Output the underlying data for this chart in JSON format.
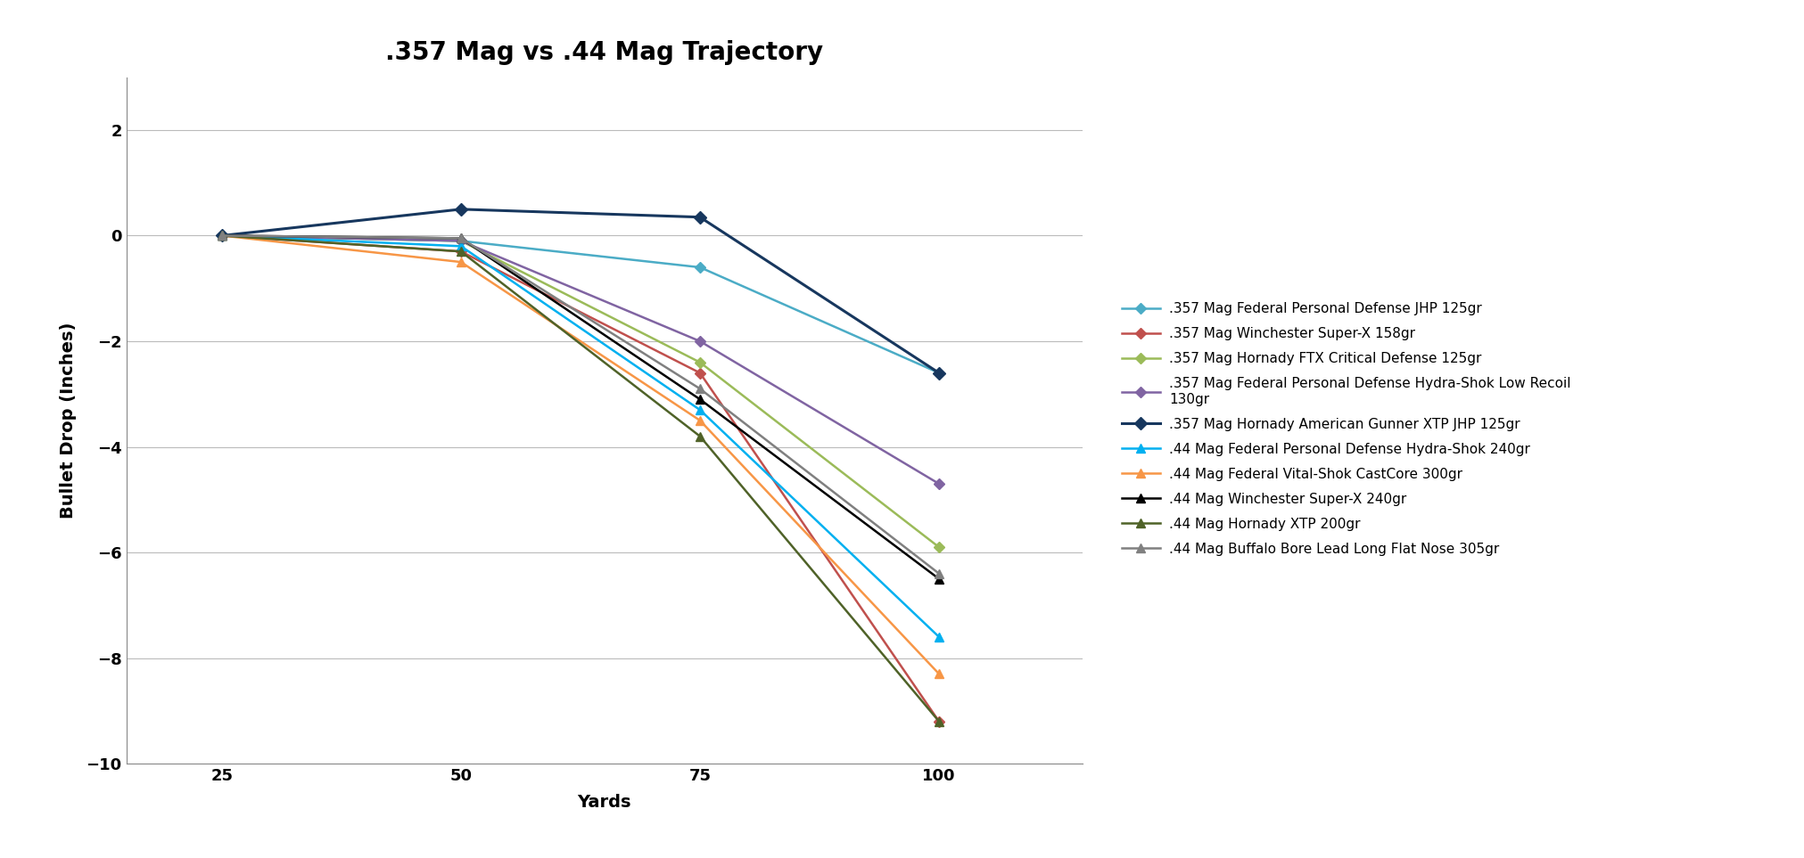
{
  "title": ".357 Mag vs .44 Mag Trajectory",
  "xlabel": "Yards",
  "ylabel": "Bullet Drop (Inches)",
  "xlim": [
    15,
    115
  ],
  "ylim": [
    -10,
    3
  ],
  "xticks": [
    25,
    50,
    75,
    100
  ],
  "yticks": [
    -10,
    -8,
    -6,
    -4,
    -2,
    0,
    2
  ],
  "series": [
    {
      "label": ".357 Mag Federal Personal Defense JHP 125gr",
      "color": "#4BACC6",
      "marker": "D",
      "markersize": 6,
      "linewidth": 1.8,
      "data": [
        [
          25,
          0
        ],
        [
          50,
          -0.1
        ],
        [
          75,
          -0.6
        ],
        [
          100,
          -2.6
        ]
      ]
    },
    {
      "label": ".357 Mag Winchester Super-X 158gr",
      "color": "#C0504D",
      "marker": "D",
      "markersize": 6,
      "linewidth": 1.8,
      "data": [
        [
          25,
          0
        ],
        [
          50,
          -0.3
        ],
        [
          75,
          -2.6
        ],
        [
          100,
          -9.2
        ]
      ]
    },
    {
      "label": ".357 Mag Hornady FTX Critical Defense 125gr",
      "color": "#9BBB59",
      "marker": "D",
      "markersize": 6,
      "linewidth": 1.8,
      "data": [
        [
          25,
          0
        ],
        [
          50,
          -0.1
        ],
        [
          75,
          -2.4
        ],
        [
          100,
          -5.9
        ]
      ]
    },
    {
      "label": ".357 Mag Federal Personal Defense Hydra-Shok Low Recoil\n130gr",
      "color": "#8064A2",
      "marker": "D",
      "markersize": 6,
      "linewidth": 1.8,
      "data": [
        [
          25,
          0
        ],
        [
          50,
          -0.1
        ],
        [
          75,
          -2.0
        ],
        [
          100,
          -4.7
        ]
      ]
    },
    {
      "label": ".357 Mag Hornady American Gunner XTP JHP 125gr",
      "color": "#17375E",
      "marker": "D",
      "markersize": 7,
      "linewidth": 2.2,
      "data": [
        [
          25,
          0
        ],
        [
          50,
          0.5
        ],
        [
          75,
          0.35
        ],
        [
          100,
          -2.6
        ]
      ]
    },
    {
      "label": ".44 Mag Federal Personal Defense Hydra-Shok 240gr",
      "color": "#00B0F0",
      "marker": "^",
      "markersize": 7,
      "linewidth": 1.8,
      "data": [
        [
          25,
          0
        ],
        [
          50,
          -0.2
        ],
        [
          75,
          -3.3
        ],
        [
          100,
          -7.6
        ]
      ]
    },
    {
      "label": ".44 Mag Federal Vital-Shok CastCore 300gr",
      "color": "#F79646",
      "marker": "^",
      "markersize": 7,
      "linewidth": 1.8,
      "data": [
        [
          25,
          0
        ],
        [
          50,
          -0.5
        ],
        [
          75,
          -3.5
        ],
        [
          100,
          -8.3
        ]
      ]
    },
    {
      "label": ".44 Mag Winchester Super-X 240gr",
      "color": "#000000",
      "marker": "^",
      "markersize": 7,
      "linewidth": 1.8,
      "data": [
        [
          25,
          0
        ],
        [
          50,
          -0.05
        ],
        [
          75,
          -3.1
        ],
        [
          100,
          -6.5
        ]
      ]
    },
    {
      "label": ".44 Mag Hornady XTP 200gr",
      "color": "#4F6228",
      "marker": "^",
      "markersize": 7,
      "linewidth": 1.8,
      "data": [
        [
          25,
          0
        ],
        [
          50,
          -0.3
        ],
        [
          75,
          -3.8
        ],
        [
          100,
          -9.2
        ]
      ]
    },
    {
      "label": ".44 Mag Buffalo Bore Lead Long Flat Nose 305gr",
      "color": "#808080",
      "marker": "^",
      "markersize": 7,
      "linewidth": 1.8,
      "data": [
        [
          25,
          0
        ],
        [
          50,
          -0.05
        ],
        [
          75,
          -2.9
        ],
        [
          100,
          -6.4
        ]
      ]
    }
  ],
  "background_color": "#FFFFFF",
  "grid_color": "#BBBBBB",
  "title_fontsize": 20,
  "label_fontsize": 14,
  "tick_fontsize": 13,
  "legend_fontsize": 11,
  "figsize": [
    20.23,
    9.63
  ]
}
